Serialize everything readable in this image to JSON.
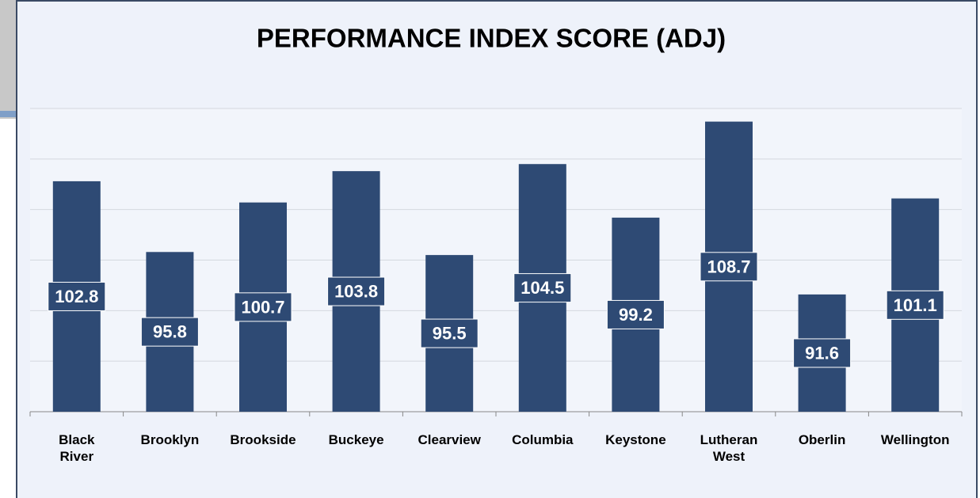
{
  "chart_data": {
    "type": "bar",
    "title": "PERFORMANCE INDEX SCORE (ADJ)",
    "categories": [
      "Black River",
      "Brooklyn",
      "Brookside",
      "Buckeye",
      "Clearview",
      "Columbia",
      "Keystone",
      "Lutheran West",
      "Oberlin",
      "Wellington"
    ],
    "values": [
      102.8,
      95.8,
      100.7,
      103.8,
      95.5,
      104.5,
      99.2,
      108.7,
      91.6,
      101.1
    ],
    "color": "#2e4a74",
    "ylim": [
      80,
      110
    ],
    "yticks": [
      80,
      85,
      90,
      95,
      100,
      105,
      110
    ],
    "grid": true
  }
}
